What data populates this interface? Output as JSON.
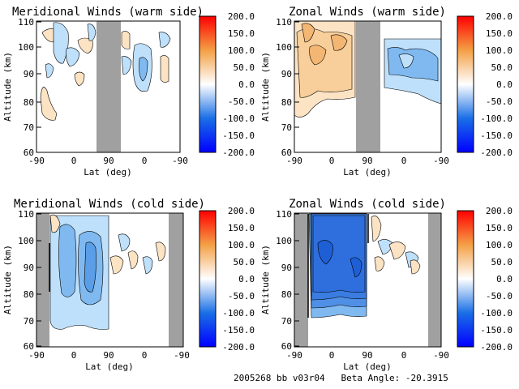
{
  "footer": "2005268 bb v03r04   Beta Angle: -20.3915",
  "colorbar": {
    "ticks": [
      "200.0",
      "150.0",
      "100.0",
      "50.0",
      "0.0",
      "-50.0",
      "-100.0",
      "-150.0",
      "-200.0"
    ],
    "range": [
      -200,
      200
    ],
    "colors": {
      "neg_max": "#0000ff",
      "neg_mid": "#1a6fe6",
      "zero": "#ffffff",
      "pos_mid": "#f4a045",
      "pos_max": "#ff0000"
    }
  },
  "chart_data": [
    {
      "type": "heatmap",
      "title": "Meridional Winds (warm side)",
      "xlabel": "Lat (deg)",
      "ylabel": "Altitude (km)",
      "x_tick_labels": [
        "-90",
        "0",
        "90",
        "0",
        "-90"
      ],
      "y_ticks": [
        60,
        70,
        80,
        90,
        100,
        110
      ],
      "ylim": [
        59,
        111
      ],
      "no_data_lat_span": [
        60,
        110
      ],
      "max_abs_value_shown": 30
    },
    {
      "type": "heatmap",
      "title": "Zonal Winds (warm side)",
      "xlabel": "Lat (deg)",
      "ylabel": "Altitude (km)",
      "x_tick_labels": [
        "-90",
        "0",
        "90",
        "0",
        "-90"
      ],
      "y_ticks": [
        60,
        70,
        80,
        90,
        100,
        110
      ],
      "ylim": [
        59,
        111
      ],
      "no_data_lat_span": [
        55,
        105
      ],
      "max_abs_value_shown": 50
    },
    {
      "type": "heatmap",
      "title": "Meridional Winds (cold side)",
      "xlabel": "Lat (deg)",
      "ylabel": "Altitude (km)",
      "x_tick_labels": [
        "-90",
        "0",
        "90",
        "0",
        "-90"
      ],
      "y_ticks": [
        60,
        70,
        80,
        90,
        100,
        110
      ],
      "ylim": [
        59,
        111
      ],
      "no_data_lat_span": [
        -90,
        -75
      ],
      "no_data_right_strip": true,
      "max_abs_value_shown": 70
    },
    {
      "type": "heatmap",
      "title": "Zonal Winds (cold side)",
      "xlabel": "Lat (deg)",
      "ylabel": "Altitude (km)",
      "x_tick_labels": [
        "-90",
        "0",
        "90",
        "0",
        "-90"
      ],
      "y_ticks": [
        60,
        70,
        80,
        90,
        100,
        110
      ],
      "ylim": [
        59,
        111
      ],
      "no_data_lat_span": [
        -90,
        -70
      ],
      "no_data_right_strip": true,
      "max_abs_value_shown": 120
    }
  ]
}
